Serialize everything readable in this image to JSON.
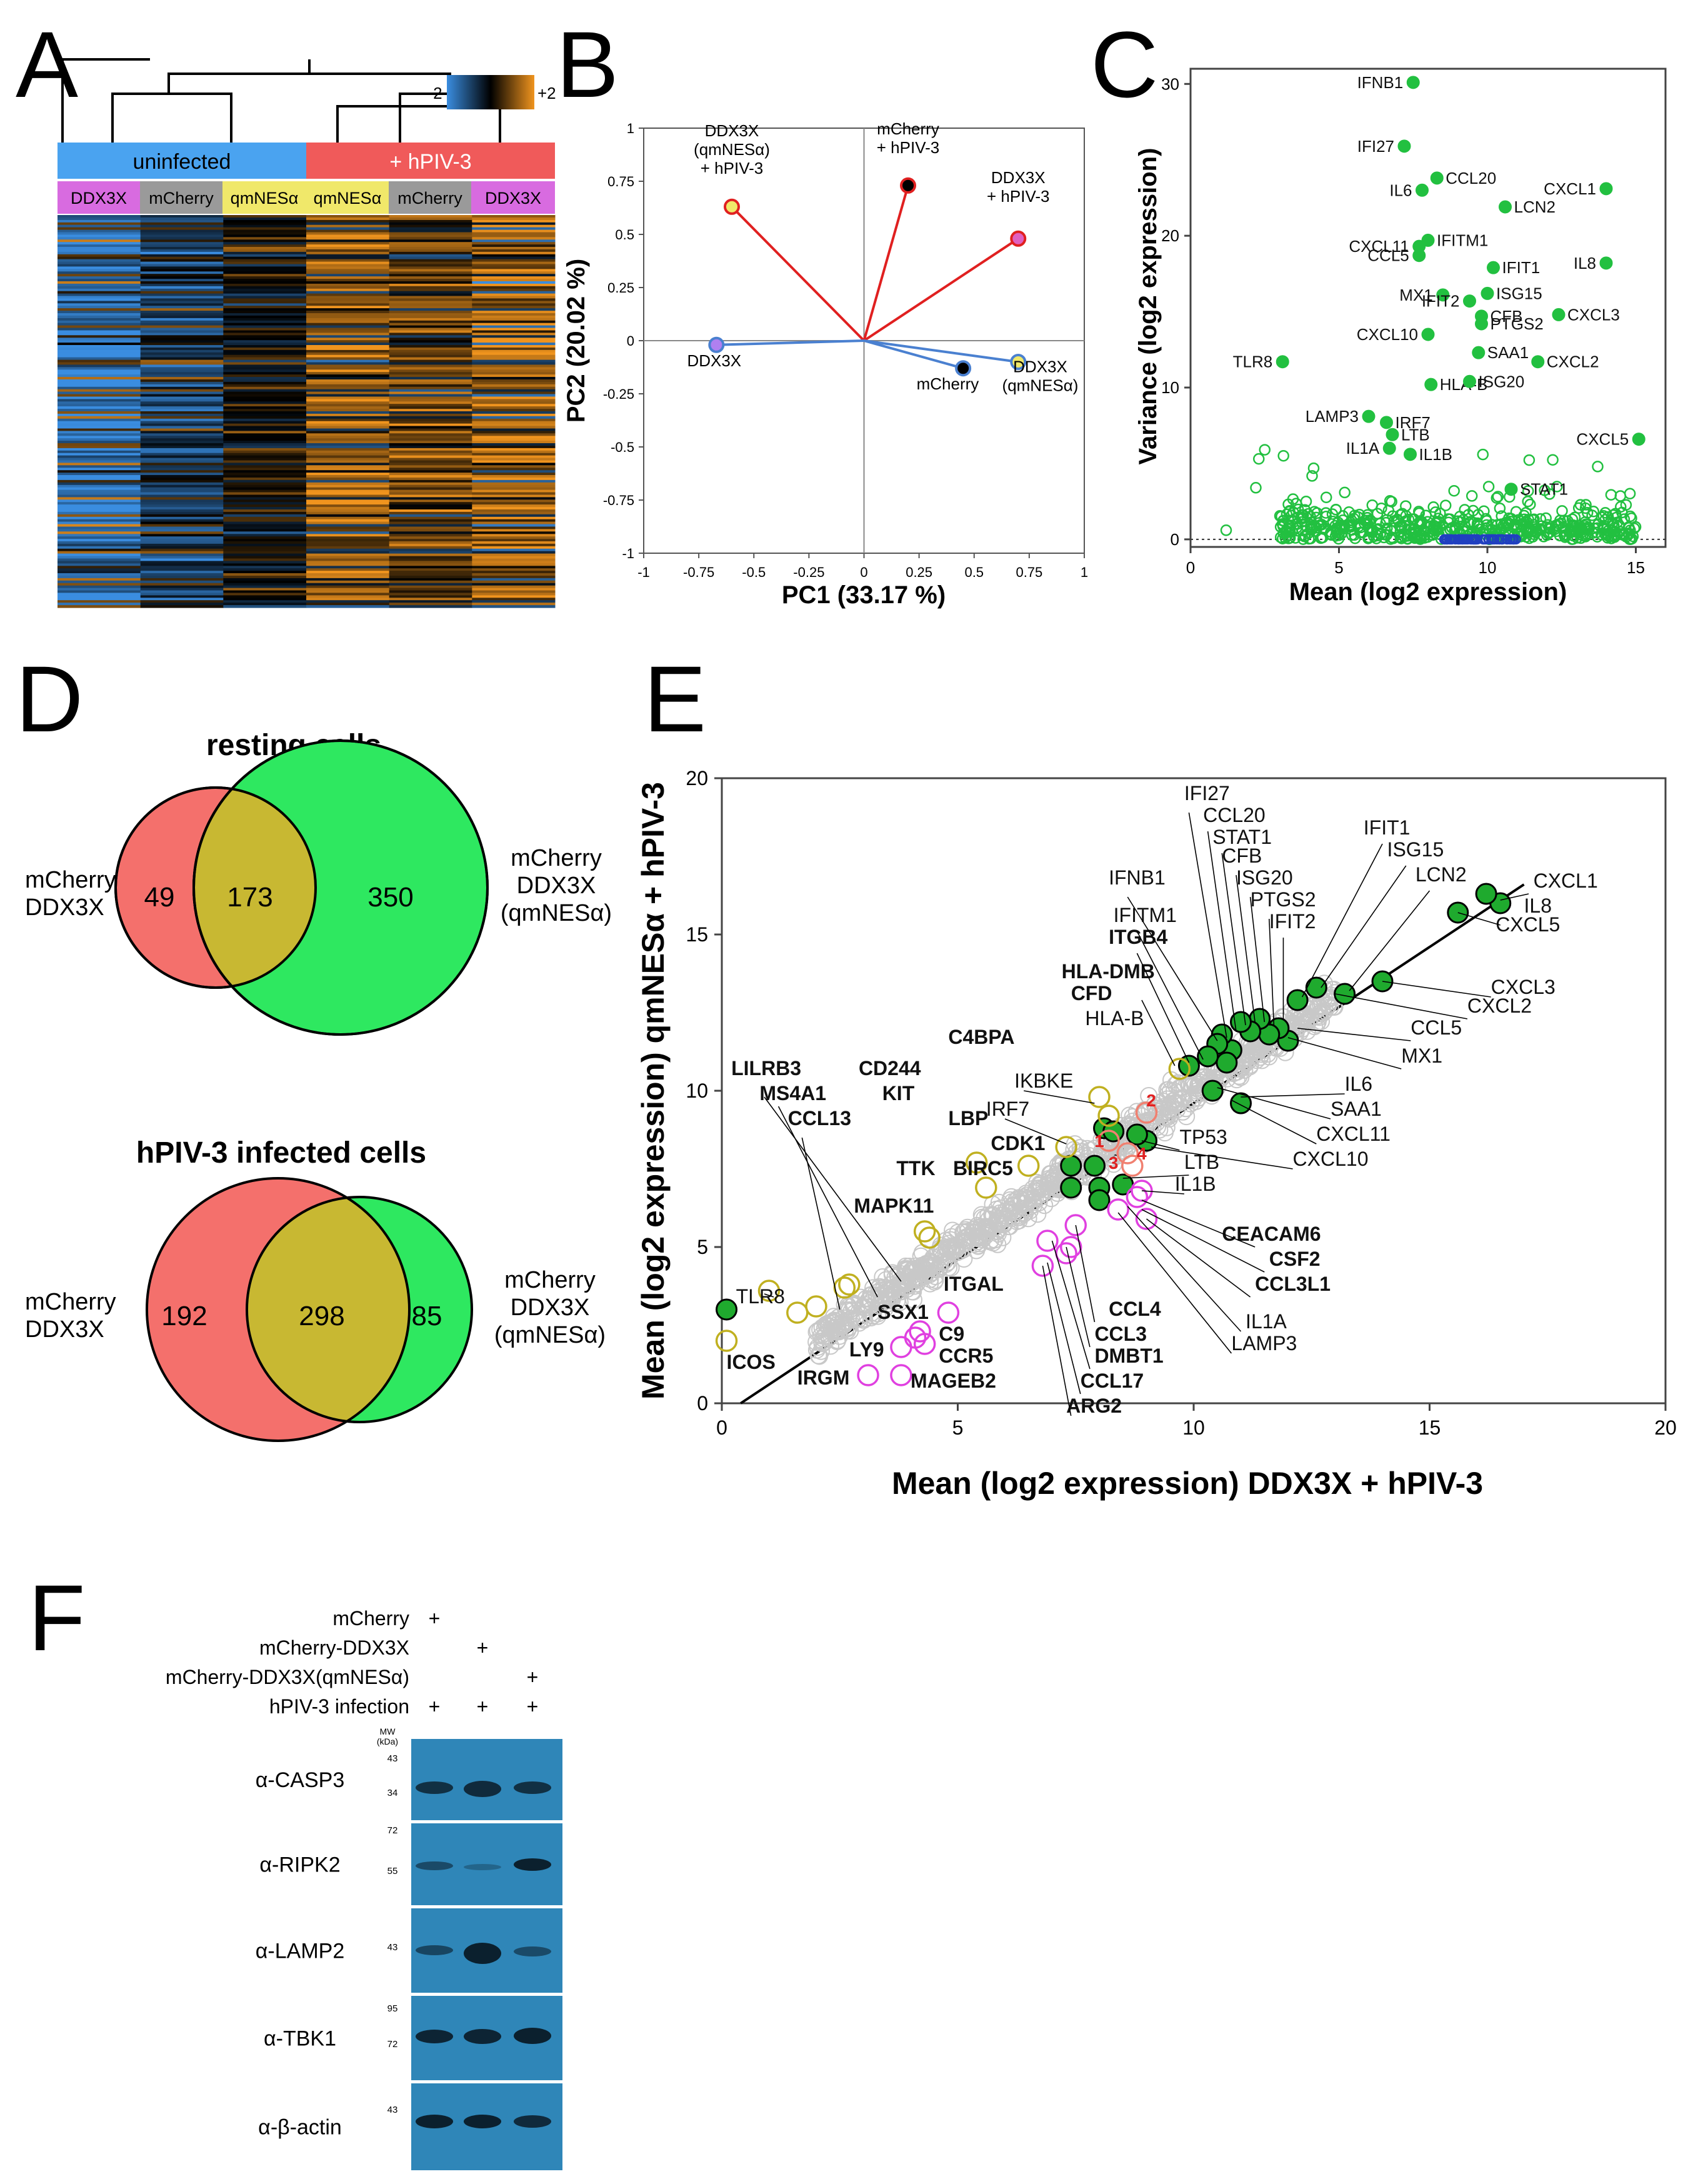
{
  "panel_labels": [
    "A",
    "B",
    "C",
    "D",
    "E",
    "F"
  ],
  "panelA": {
    "colorbar": {
      "min": "−2",
      "max": "+2"
    },
    "groups": [
      "uninfected",
      "+ hPIV-3"
    ],
    "columns": [
      "DDX3X",
      "mCherry",
      "qmNESα",
      "qmNESα",
      "mCherry",
      "DDX3X"
    ],
    "colors": {
      "uninfected": "#4aa3f0",
      "infected": "#f05a5a",
      "ddx3x": "#d86be0",
      "mcherry": "#9a9a9a",
      "qmnes": "#f0e86a",
      "low": "#3a8de0",
      "high": "#f0941e"
    }
  },
  "panelB": {
    "chart_data": {
      "type": "scatter",
      "xlabel": "PC1 (33.17 %)",
      "ylabel": "PC2 (20.02 %)",
      "xlim": [
        -1,
        1
      ],
      "ylim": [
        -1,
        1
      ],
      "xticks": [
        "-1",
        "-0.75",
        "-0.5",
        "-0.25",
        "0",
        "0.25",
        "0.5",
        "0.75",
        "1"
      ],
      "yticks": [
        "1",
        "0.75",
        "0.5",
        "0.25",
        "0",
        "-0.25",
        "-0.5",
        "-0.75",
        "-1"
      ],
      "points": [
        {
          "label": "DDX3X\n(qmNESα)\n+ hPIV-3",
          "x": -0.6,
          "y": 0.63,
          "fill": "#f0e86a",
          "edge": "#e02020",
          "line": "#e02020",
          "lx": -0.6,
          "ly": 0.88
        },
        {
          "label": "mCherry\n+ hPIV-3",
          "x": 0.2,
          "y": 0.73,
          "fill": "#000000",
          "edge": "#e02020",
          "line": "#e02020",
          "lx": 0.2,
          "ly": 0.93
        },
        {
          "label": "DDX3X\n+ hPIV-3",
          "x": 0.7,
          "y": 0.48,
          "fill": "#e060c0",
          "edge": "#e02020",
          "line": "#e02020",
          "lx": 0.7,
          "ly": 0.7
        },
        {
          "label": "DDX3X",
          "x": -0.67,
          "y": -0.02,
          "fill": "#b080f0",
          "edge": "#4a80d0",
          "line": "#4a80d0",
          "lx": -0.68,
          "ly": -0.12
        },
        {
          "label": "mCherry",
          "x": 0.45,
          "y": -0.13,
          "fill": "#000000",
          "edge": "#4a80d0",
          "line": "#4a80d0",
          "lx": 0.38,
          "ly": -0.23
        },
        {
          "label": "DDX3X\n(qmNESα)",
          "x": 0.7,
          "y": -0.1,
          "fill": "#f0e86a",
          "edge": "#4a80d0",
          "line": "#4a80d0",
          "lx": 0.8,
          "ly": -0.19
        }
      ]
    }
  },
  "panelC": {
    "chart_data": {
      "type": "scatter",
      "xlabel": "Mean (log2 expression)",
      "ylabel": "Variance (log2 expression)",
      "xlim": [
        0,
        16
      ],
      "ylim": [
        -0.5,
        31
      ],
      "xticks": [
        0,
        5,
        10,
        15
      ],
      "yticks": [
        0,
        10,
        20,
        30
      ],
      "labeled_points": [
        {
          "label": "IFNB1",
          "x": 7.5,
          "y": 30.1
        },
        {
          "label": "IFI27",
          "x": 7.2,
          "y": 25.9
        },
        {
          "label": "IL6",
          "x": 7.8,
          "y": 23.0
        },
        {
          "label": "CCL20",
          "x": 8.3,
          "y": 23.8
        },
        {
          "label": "CXCL1",
          "x": 14.0,
          "y": 23.1
        },
        {
          "label": "LCN2",
          "x": 10.6,
          "y": 21.9
        },
        {
          "label": "CXCL11",
          "x": 7.7,
          "y": 19.3
        },
        {
          "label": "IFITM1",
          "x": 8.0,
          "y": 19.7
        },
        {
          "label": "CCL5",
          "x": 7.7,
          "y": 18.7
        },
        {
          "label": "IFIT1",
          "x": 10.2,
          "y": 17.9
        },
        {
          "label": "IL8",
          "x": 14.0,
          "y": 18.2
        },
        {
          "label": "MX1",
          "x": 8.5,
          "y": 16.1
        },
        {
          "label": "ISG15",
          "x": 10.0,
          "y": 16.2
        },
        {
          "label": "IFIT2",
          "x": 9.4,
          "y": 15.7
        },
        {
          "label": "CFB",
          "x": 9.8,
          "y": 14.7
        },
        {
          "label": "CXCL3",
          "x": 12.4,
          "y": 14.8
        },
        {
          "label": "PTGS2",
          "x": 9.8,
          "y": 14.2
        },
        {
          "label": "CXCL10",
          "x": 8.0,
          "y": 13.5
        },
        {
          "label": "SAA1",
          "x": 9.7,
          "y": 12.3
        },
        {
          "label": "TLR8",
          "x": 3.1,
          "y": 11.7
        },
        {
          "label": "CXCL2",
          "x": 11.7,
          "y": 11.7
        },
        {
          "label": "HLA-B",
          "x": 8.1,
          "y": 10.2
        },
        {
          "label": "ISG20",
          "x": 9.4,
          "y": 10.4
        },
        {
          "label": "LAMP3",
          "x": 6.0,
          "y": 8.1
        },
        {
          "label": "IRF7",
          "x": 6.6,
          "y": 7.7
        },
        {
          "label": "LTB",
          "x": 6.8,
          "y": 6.9
        },
        {
          "label": "IL1A",
          "x": 6.7,
          "y": 6.0
        },
        {
          "label": "IL1B",
          "x": 7.4,
          "y": 5.6
        },
        {
          "label": "CXCL5",
          "x": 15.1,
          "y": 6.6
        },
        {
          "label": "STAT1",
          "x": 10.8,
          "y": 3.3
        }
      ]
    }
  },
  "panelD": {
    "resting": {
      "title": "resting cells",
      "left_label": "mCherry\nDDX3X",
      "right_label": "mCherry\nDDX3X\n(qmNESα)",
      "left_only": "49",
      "overlap": "173",
      "right_only": "350"
    },
    "infected": {
      "title": "hPIV-3 infected cells",
      "left_label": "mCherry\nDDX3X",
      "right_label": "mCherry\nDDX3X\n(qmNESα)",
      "left_only": "192",
      "overlap": "298",
      "right_only": "85"
    },
    "colors": {
      "left": "#f4706c",
      "right": "#2ee860",
      "overlap": "#c8b832"
    }
  },
  "panelE": {
    "chart_data": {
      "type": "scatter",
      "xlabel": "Mean (log2 expression) DDX3X + hPIV-3",
      "ylabel": "Mean (log2 expression) qmNESα + hPIV-3",
      "xlim": [
        0,
        20
      ],
      "ylim": [
        0,
        20
      ],
      "xticks": [
        0,
        5,
        10,
        15,
        20
      ],
      "yticks": [
        0,
        5,
        10,
        15,
        20
      ],
      "red_numbers": [
        "1",
        "2",
        "3",
        "4"
      ],
      "labels": [
        {
          "t": "IFI27",
          "x": 9.8,
          "y": 19.3,
          "b": false
        },
        {
          "t": "CCL20",
          "x": 10.2,
          "y": 18.6,
          "b": false
        },
        {
          "t": "STAT1",
          "x": 10.4,
          "y": 17.9,
          "b": false
        },
        {
          "t": "CFB",
          "x": 10.6,
          "y": 17.3,
          "b": false
        },
        {
          "t": "ISG20",
          "x": 10.9,
          "y": 16.6,
          "b": false
        },
        {
          "t": "PTGS2",
          "x": 11.2,
          "y": 15.9,
          "b": false
        },
        {
          "t": "IFIT2",
          "x": 11.6,
          "y": 15.2,
          "b": false
        },
        {
          "t": "IFIT1",
          "x": 13.6,
          "y": 18.2,
          "b": false
        },
        {
          "t": "ISG15",
          "x": 14.1,
          "y": 17.5,
          "b": false
        },
        {
          "t": "LCN2",
          "x": 14.7,
          "y": 16.7,
          "b": false
        },
        {
          "t": "CXCL1",
          "x": 17.2,
          "y": 16.5,
          "b": false
        },
        {
          "t": "IL8",
          "x": 17.0,
          "y": 15.7,
          "b": false
        },
        {
          "t": "CXCL5",
          "x": 16.4,
          "y": 15.1,
          "b": false
        },
        {
          "t": "IFNB1",
          "x": 8.2,
          "y": 16.6,
          "b": false
        },
        {
          "t": "IFITM1",
          "x": 8.3,
          "y": 15.4,
          "b": false
        },
        {
          "t": "ITGB4",
          "x": 8.2,
          "y": 14.7,
          "b": true
        },
        {
          "t": "HLA-DMB",
          "x": 7.2,
          "y": 13.6,
          "b": true
        },
        {
          "t": "CFD",
          "x": 7.4,
          "y": 12.9,
          "b": true
        },
        {
          "t": "HLA-B",
          "x": 7.7,
          "y": 12.1,
          "b": false
        },
        {
          "t": "C4BPA",
          "x": 4.8,
          "y": 11.5,
          "b": true
        },
        {
          "t": "IKBKE",
          "x": 6.2,
          "y": 10.1,
          "b": false
        },
        {
          "t": "IRF7",
          "x": 5.6,
          "y": 9.2,
          "b": false
        },
        {
          "t": "LILRB3",
          "x": 0.2,
          "y": 10.5,
          "b": true
        },
        {
          "t": "MS4A1",
          "x": 0.8,
          "y": 9.7,
          "b": true
        },
        {
          "t": "CD244",
          "x": 2.9,
          "y": 10.5,
          "b": true
        },
        {
          "t": "KIT",
          "x": 3.4,
          "y": 9.7,
          "b": true
        },
        {
          "t": "CCL13",
          "x": 1.4,
          "y": 8.9,
          "b": true
        },
        {
          "t": "LBP",
          "x": 4.8,
          "y": 8.9,
          "b": true
        },
        {
          "t": "CDK1",
          "x": 5.7,
          "y": 8.1,
          "b": true
        },
        {
          "t": "TTK",
          "x": 3.7,
          "y": 7.3,
          "b": true
        },
        {
          "t": "BIRC5",
          "x": 4.9,
          "y": 7.3,
          "b": true
        },
        {
          "t": "MAPK11",
          "x": 2.8,
          "y": 6.1,
          "b": true
        },
        {
          "t": "ITGAL",
          "x": 4.7,
          "y": 3.6,
          "b": true
        },
        {
          "t": "SSX1",
          "x": 3.3,
          "y": 2.7,
          "b": true
        },
        {
          "t": "C9",
          "x": 4.6,
          "y": 2.0,
          "b": true
        },
        {
          "t": "CCR5",
          "x": 4.6,
          "y": 1.3,
          "b": true
        },
        {
          "t": "LY9",
          "x": 2.7,
          "y": 1.5,
          "b": true
        },
        {
          "t": "IRGM",
          "x": 1.6,
          "y": 0.6,
          "b": true
        },
        {
          "t": "MAGEB2",
          "x": 4.0,
          "y": 0.5,
          "b": true
        },
        {
          "t": "TLR8",
          "x": 0.3,
          "y": 3.2,
          "b": false
        },
        {
          "t": "ICOS",
          "x": 0.1,
          "y": 1.1,
          "b": true
        },
        {
          "t": "ARG2",
          "x": 7.3,
          "y": -0.3,
          "b": true
        },
        {
          "t": "CCL17",
          "x": 7.6,
          "y": 0.5,
          "b": true
        },
        {
          "t": "DMBT1",
          "x": 7.9,
          "y": 1.3,
          "b": true
        },
        {
          "t": "CCL3",
          "x": 7.9,
          "y": 2.0,
          "b": true
        },
        {
          "t": "CCL4",
          "x": 8.2,
          "y": 2.8,
          "b": true
        },
        {
          "t": "LAMP3",
          "x": 10.8,
          "y": 1.7,
          "b": false
        },
        {
          "t": "IL1A",
          "x": 11.1,
          "y": 2.4,
          "b": false
        },
        {
          "t": "CCL3L1",
          "x": 11.3,
          "y": 3.6,
          "b": true
        },
        {
          "t": "CSF2",
          "x": 11.6,
          "y": 4.4,
          "b": true
        },
        {
          "t": "CEACAM6",
          "x": 10.6,
          "y": 5.2,
          "b": true
        },
        {
          "t": "IL1B",
          "x": 9.6,
          "y": 6.8,
          "b": false
        },
        {
          "t": "LTB",
          "x": 9.8,
          "y": 7.5,
          "b": false
        },
        {
          "t": "TP53",
          "x": 9.7,
          "y": 8.3,
          "b": false
        },
        {
          "t": "CXCL10",
          "x": 12.1,
          "y": 7.6,
          "b": false
        },
        {
          "t": "CXCL11",
          "x": 12.6,
          "y": 8.4,
          "b": false
        },
        {
          "t": "SAA1",
          "x": 12.9,
          "y": 9.2,
          "b": false
        },
        {
          "t": "IL6",
          "x": 13.2,
          "y": 10.0,
          "b": false
        },
        {
          "t": "MX1",
          "x": 14.4,
          "y": 10.9,
          "b": false
        },
        {
          "t": "CCL5",
          "x": 14.6,
          "y": 11.8,
          "b": false
        },
        {
          "t": "CXCL2",
          "x": 15.8,
          "y": 12.5,
          "b": false
        },
        {
          "t": "CXCL3",
          "x": 16.3,
          "y": 13.1,
          "b": false
        }
      ]
    }
  },
  "panelF": {
    "conditions": [
      {
        "label": "mCherry",
        "marks": [
          "+",
          "",
          ""
        ]
      },
      {
        "label": "mCherry-DDX3X",
        "marks": [
          "",
          "+",
          ""
        ]
      },
      {
        "label": "mCherry-DDX3X(qmNESα)",
        "marks": [
          "",
          "",
          "+"
        ]
      },
      {
        "label": "hPIV-3 infection",
        "marks": [
          "+",
          "+",
          "+"
        ]
      }
    ],
    "mw_header": "MW\n(kDa)",
    "blots": [
      {
        "label": "α-CASP3",
        "mw": [
          "43",
          "34"
        ]
      },
      {
        "label": "α-RIPK2",
        "mw": [
          "72",
          "55"
        ]
      },
      {
        "label": "α-LAMP2",
        "mw": [
          "43"
        ]
      },
      {
        "label": "α-TBK1",
        "mw": [
          "95",
          "72"
        ]
      },
      {
        "label": "α-β-actin",
        "mw": [
          "43"
        ]
      }
    ],
    "membrane_color": "#2f86b8"
  }
}
